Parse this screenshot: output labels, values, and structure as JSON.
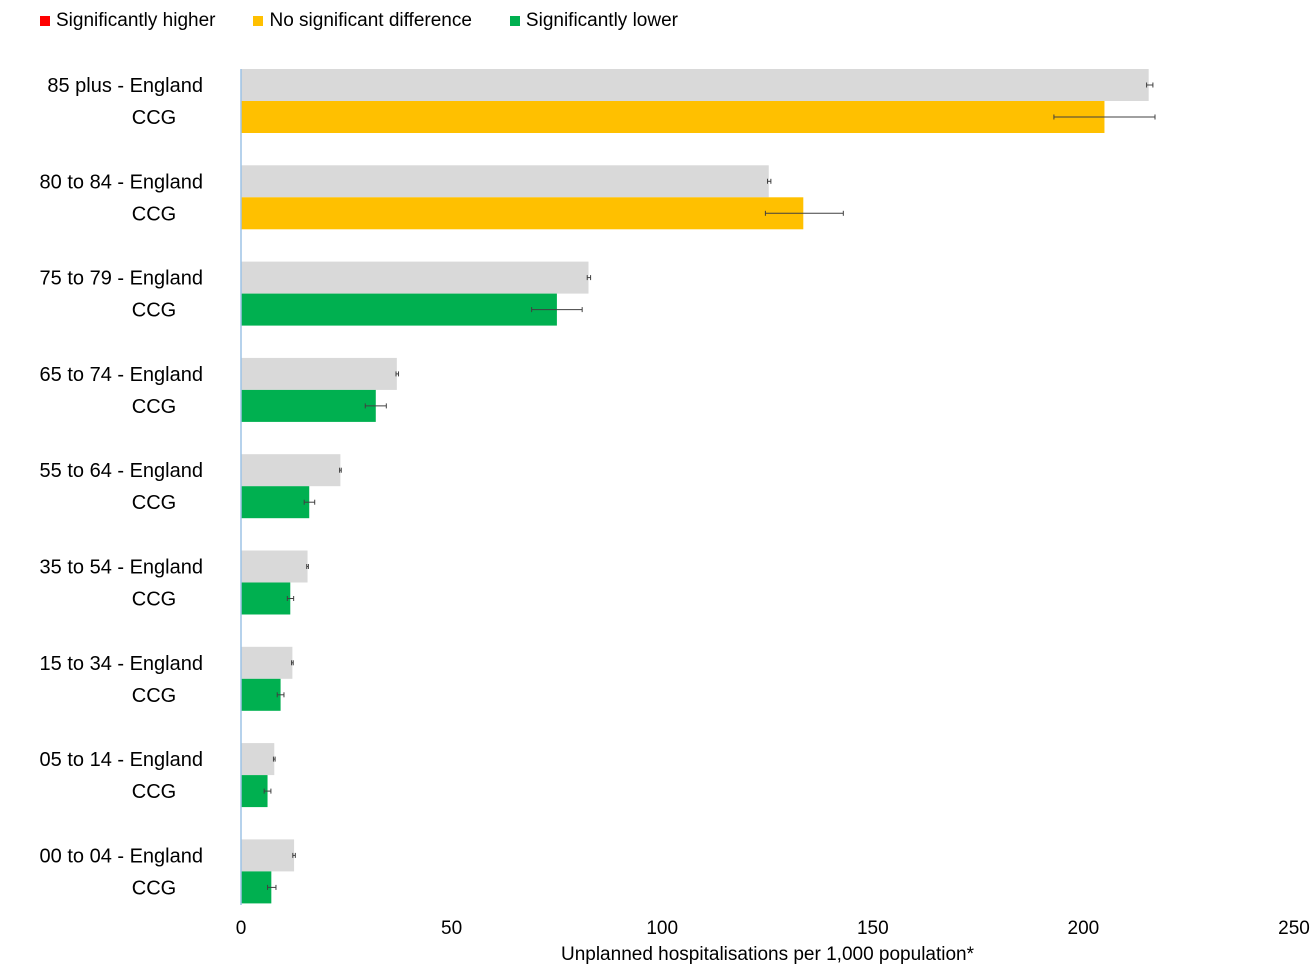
{
  "legend": [
    {
      "label": "Significantly higher",
      "color": "#ff0000"
    },
    {
      "label": "No significant difference",
      "color": "#ffc000"
    },
    {
      "label": "Significantly lower",
      "color": "#00b050"
    }
  ],
  "colors": {
    "england": "#d9d9d9",
    "axis": "#9dc3e6",
    "error_bar": "#404040"
  },
  "chart_data": {
    "type": "bar",
    "orientation": "horizontal",
    "xlabel": "Unplanned hospitalisations per 1,000 population*",
    "xlim": [
      0,
      250
    ],
    "xticks": [
      0,
      50,
      100,
      150,
      200,
      250
    ],
    "grid": false,
    "legend_position": "top-left",
    "categories": [
      "85 plus",
      "80 to 84",
      "75 to 79",
      "65 to 74",
      "55 to 64",
      "35 to 54",
      "15 to 34",
      "05 to 14",
      "00 to 04"
    ],
    "category_suffix": "- England",
    "series": [
      {
        "name": "England",
        "color": "#d9d9d9",
        "values": [
          215.5,
          125.3,
          82.5,
          37.0,
          23.6,
          15.8,
          12.2,
          7.9,
          12.6
        ],
        "ci_low": [
          215.0,
          125.0,
          82.2,
          36.8,
          23.4,
          15.6,
          12.0,
          7.7,
          12.3
        ],
        "ci_high": [
          216.5,
          125.8,
          83.0,
          37.4,
          23.8,
          16.0,
          12.4,
          8.1,
          12.9
        ]
      },
      {
        "name": "CCG",
        "values": [
          205.0,
          133.5,
          75.0,
          32.0,
          16.2,
          11.7,
          9.4,
          6.3,
          7.2
        ],
        "ci_low": [
          193.0,
          124.5,
          69.0,
          29.5,
          15.0,
          11.0,
          8.6,
          5.5,
          6.3
        ],
        "ci_high": [
          217.0,
          143.0,
          81.0,
          34.5,
          17.5,
          12.5,
          10.2,
          7.1,
          8.3
        ],
        "significance": [
          "none",
          "none",
          "lower",
          "lower",
          "lower",
          "lower",
          "lower",
          "lower",
          "lower"
        ]
      }
    ]
  }
}
